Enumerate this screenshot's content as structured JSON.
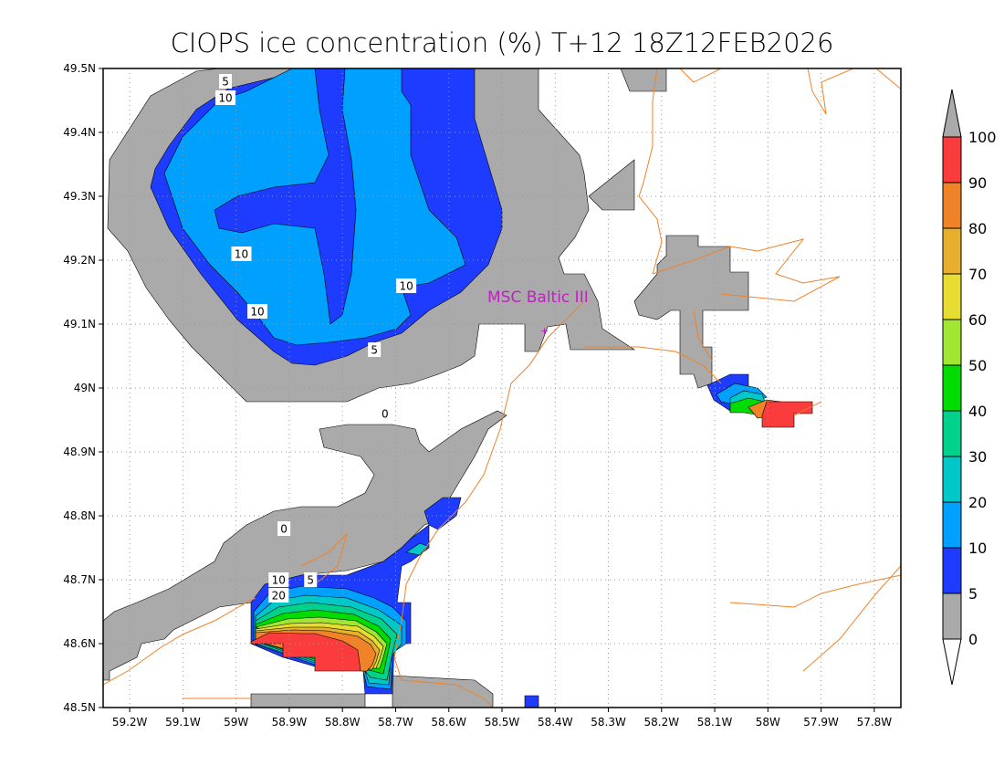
{
  "title": "CIOPS ice concentration (%) T+12 18Z12FEB2026",
  "chart_data": {
    "type": "heatmap",
    "title": "CIOPS ice concentration (%) T+12 18Z12FEB2026",
    "variable": "ice concentration (%)",
    "lon_range": [
      -59.25,
      -57.75
    ],
    "lat_range": [
      48.5,
      49.5
    ],
    "lon_ticks": [
      -59.2,
      -59.1,
      -59.0,
      -58.9,
      -58.8,
      -58.7,
      -58.6,
      -58.5,
      -58.4,
      -58.3,
      -58.2,
      -58.1,
      -58.0,
      -57.9,
      -57.8
    ],
    "lon_tick_labels": [
      "59.2W",
      "59.1W",
      "59W",
      "58.9W",
      "58.8W",
      "58.7W",
      "58.6W",
      "58.5W",
      "58.4W",
      "58.3W",
      "58.2W",
      "58.1W",
      "58W",
      "57.9W",
      "57.8W"
    ],
    "lat_ticks": [
      48.5,
      48.6,
      48.7,
      48.8,
      48.9,
      49.0,
      49.1,
      49.2,
      49.3,
      49.4,
      49.5
    ],
    "lat_tick_labels": [
      "48.5N",
      "48.6N",
      "48.7N",
      "48.8N",
      "48.9N",
      "49N",
      "49.1N",
      "49.2N",
      "49.3N",
      "49.4N",
      "49.5N"
    ],
    "grid": true,
    "legend": {
      "placement": "right",
      "levels": [
        "0",
        "5",
        "10",
        "20",
        "30",
        "40",
        "50",
        "60",
        "70",
        "80",
        "90",
        "100"
      ],
      "colors": [
        "#ffffff",
        "#aaaaaa",
        "#1e3cff",
        "#00a0ff",
        "#00c8c8",
        "#00d28c",
        "#00dc00",
        "#a0e632",
        "#e6dc32",
        "#e6af2d",
        "#f08228",
        "#fa3c3c",
        "#aaaaaa"
      ]
    },
    "contour_labels": [
      {
        "text": "5",
        "lon": -59.02,
        "lat": 49.48
      },
      {
        "text": "10",
        "lon": -59.02,
        "lat": 49.46
      },
      {
        "text": "10",
        "lon": -58.99,
        "lat": 49.21
      },
      {
        "text": "10",
        "lon": -58.96,
        "lat": 49.12
      },
      {
        "text": "10",
        "lon": -58.68,
        "lat": 49.16
      },
      {
        "text": "5",
        "lon": -58.74,
        "lat": 49.06
      },
      {
        "text": "0",
        "lon": -58.72,
        "lat": 48.96
      },
      {
        "text": "0",
        "lon": -58.91,
        "lat": 48.78
      },
      {
        "text": "10",
        "lon": -58.92,
        "lat": 48.7
      },
      {
        "text": "20",
        "lon": -58.92,
        "lat": 48.69
      },
      {
        "text": "5",
        "lon": -58.86,
        "lat": 48.7
      }
    ],
    "station": {
      "name": "MSC Baltic III",
      "lon": -58.42,
      "lat": 49.09,
      "color": "#c020c0"
    }
  }
}
